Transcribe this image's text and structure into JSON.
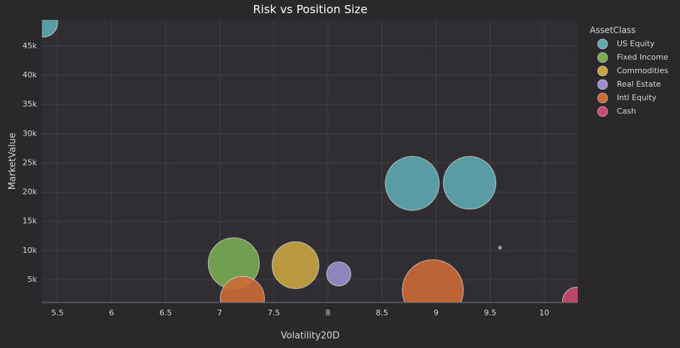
{
  "chart_data": {
    "type": "scatter",
    "title": "Risk vs Position Size",
    "x_label": "Volatility20D",
    "y_label": "MarketValue",
    "legend_title": "AssetClass",
    "legend": "right",
    "grid": true,
    "xlim": [
      5.356,
      10.31
    ],
    "ylim": [
      1100,
      49500
    ],
    "xticks": [
      5.5,
      6,
      6.5,
      7,
      7.5,
      8,
      8.5,
      9,
      9.5,
      10
    ],
    "yticks": [
      {
        "value": 5000,
        "label": "5k"
      },
      {
        "value": 10000,
        "label": "10k"
      },
      {
        "value": 15000,
        "label": "15k"
      },
      {
        "value": 20000,
        "label": "20k"
      },
      {
        "value": 25000,
        "label": "25k"
      },
      {
        "value": 30000,
        "label": "30k"
      },
      {
        "value": 35000,
        "label": "35k"
      },
      {
        "value": 40000,
        "label": "40k"
      },
      {
        "value": 45000,
        "label": "45k"
      }
    ],
    "series": [
      {
        "name": "US Equity",
        "color": "#5fa8b0",
        "x": [
          5.37,
          8.78,
          9.31,
          9.59
        ],
        "values": [
          49000,
          21500,
          21600,
          10500
        ],
        "sizes": [
          400,
          1444,
          1369,
          4
        ]
      },
      {
        "name": "Fixed Income",
        "color": "#7aab52",
        "x": [
          7.13
        ],
        "values": [
          7800
        ],
        "sizes": [
          1296
        ]
      },
      {
        "name": "Commodities",
        "color": "#c9a441",
        "x": [
          7.7
        ],
        "values": [
          7500
        ],
        "sizes": [
          1089
        ]
      },
      {
        "name": "Real Estate",
        "color": "#9b8ecb",
        "x": [
          8.1
        ],
        "values": [
          6000
        ],
        "sizes": [
          289
        ]
      },
      {
        "name": "Intl Equity",
        "color": "#cc6a35",
        "x": [
          7.21,
          8.97
        ],
        "values": [
          1800,
          3200
        ],
        "sizes": [
          961,
          1849
        ]
      },
      {
        "name": "Cash",
        "color": "#cc4a6d",
        "x": [
          10.3
        ],
        "values": [
          1300
        ],
        "sizes": [
          400
        ]
      }
    ]
  }
}
